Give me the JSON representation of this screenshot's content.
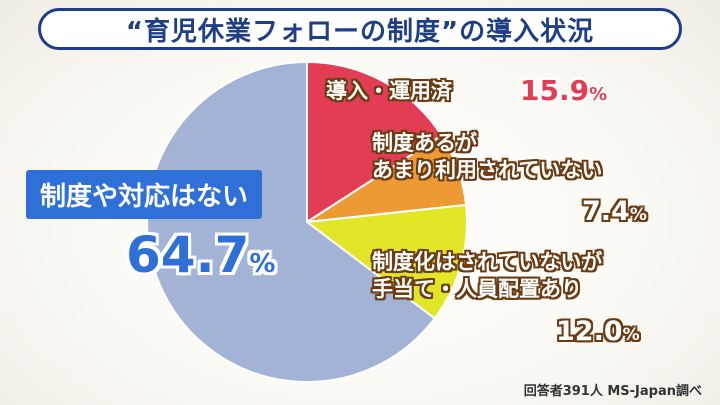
{
  "title": "“育児休業フォローの制度”の導入状況",
  "source": "回答者391人 MS-Japan調べ",
  "colors": {
    "navy": "#1e3f86",
    "red": "#e33d55",
    "orange": "#ee9a34",
    "yellow": "#e1e727",
    "blue_gray": "#a3b3d6",
    "label_blue": "#2f6fd8"
  },
  "chart_data": {
    "type": "pie",
    "title": "“育児休業フォローの制度”の導入状況",
    "slices": [
      {
        "label": "導入・運用済",
        "value": 15.9,
        "color": "#e33d55"
      },
      {
        "label": "制度あるがあまり利用されていない",
        "value": 7.4,
        "color": "#ee9a34"
      },
      {
        "label": "制度化はされていないが手当て・人員配置あり",
        "value": 12.0,
        "color": "#e1e727"
      },
      {
        "label": "制度や対応はない",
        "value": 64.7,
        "color": "#a3b3d6"
      }
    ],
    "unit": "%"
  },
  "labels": {
    "s0_line1": "導入・運用済",
    "s1_line1": "制度あるが",
    "s1_line2": "あまり利用されていない",
    "s2_line1": "制度化はされていないが",
    "s2_line2": "手当て・人員配置あり",
    "s3_line1": "制度や対応はない",
    "s0_pct": "15.9",
    "s1_pct": "7.4",
    "s2_pct": "12.0",
    "s3_pct": "64.7",
    "pct_sign": "%"
  }
}
